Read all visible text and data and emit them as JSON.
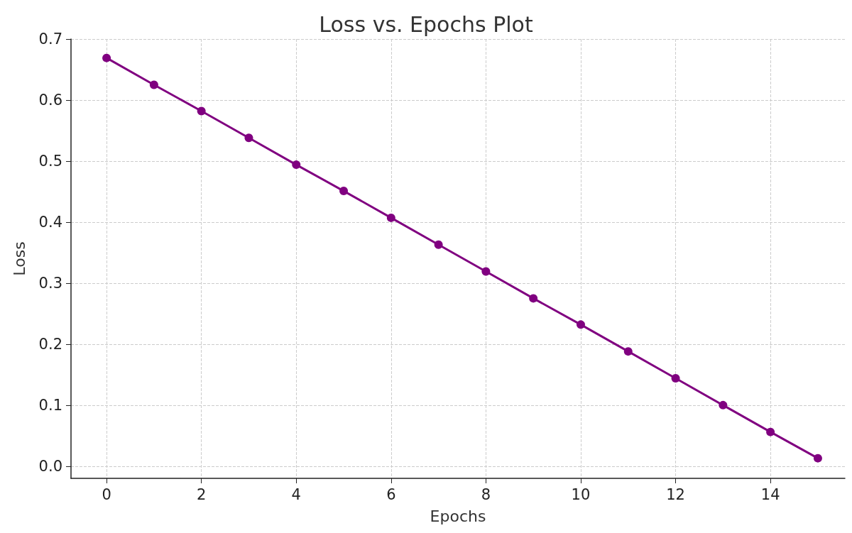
{
  "chart_data": {
    "type": "line",
    "title": "Loss vs. Epochs Plot",
    "xlabel": "Epochs",
    "ylabel": "Loss",
    "x": [
      0,
      1,
      2,
      3,
      4,
      5,
      6,
      7,
      8,
      9,
      10,
      11,
      12,
      13,
      14,
      15
    ],
    "series": [
      {
        "color": "#800080",
        "values": [
          0.669,
          0.625,
          0.582,
          0.538,
          0.494,
          0.451,
          0.407,
          0.363,
          0.319,
          0.275,
          0.232,
          0.188,
          0.144,
          0.1,
          0.056,
          0.013
        ]
      }
    ],
    "xlim": [
      -0.75,
      15.57
    ],
    "xticks": [
      0,
      2,
      4,
      6,
      8,
      10,
      12,
      14
    ],
    "ylim": [
      -0.02,
      0.7
    ],
    "yticks": [
      {
        "value": 0,
        "label": "0.0"
      },
      0.1,
      0.2,
      0.3,
      0.4,
      0.5,
      0.6,
      0.7
    ],
    "grid": true,
    "marker": "circle",
    "line_style": "solid"
  }
}
